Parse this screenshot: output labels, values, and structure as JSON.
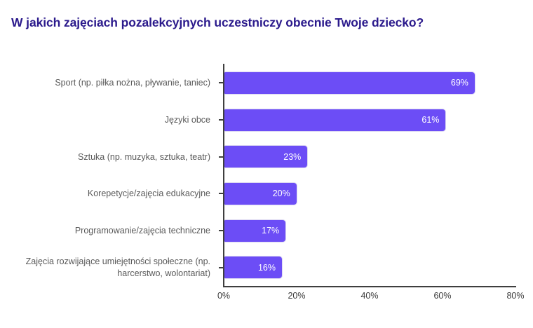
{
  "colors": {
    "bar": "#6C4DF6",
    "bar_border": "#DDD9F2",
    "title": "#2B1A8C",
    "axis": "#3F3F3F",
    "category_label": "#595959",
    "tick_label": "#3B3B3B",
    "value_label": "#FFFFFF",
    "background": "#FFFFFF"
  },
  "chart_data": {
    "type": "bar",
    "orientation": "horizontal",
    "title": "W jakich zajęciach pozalekcyjnych uczestniczy obecnie Twoje dziecko?",
    "categories": [
      "Sport (np. piłka nożna, pływanie, taniec)",
      "Języki obce",
      "Sztuka (np. muzyka, sztuka, teatr)",
      "Korepetycje/zajęcia edukacyjne",
      "Programowanie/zajęcia techniczne",
      "Zajęcia rozwijające umiejętności społeczne (np. harcerstwo, wolontariat)"
    ],
    "values": [
      69,
      61,
      23,
      20,
      17,
      16
    ],
    "value_labels": [
      "69%",
      "61%",
      "23%",
      "20%",
      "17%",
      "16%"
    ],
    "xlabel": "",
    "ylabel": "",
    "xlim": [
      0,
      80
    ],
    "x_ticks": [
      "0%",
      "20%",
      "40%",
      "60%",
      "80%"
    ],
    "x_tick_values": [
      0,
      20,
      40,
      60,
      80
    ],
    "grid": false,
    "legend": false,
    "bar_value_label_position": "inside-end"
  }
}
